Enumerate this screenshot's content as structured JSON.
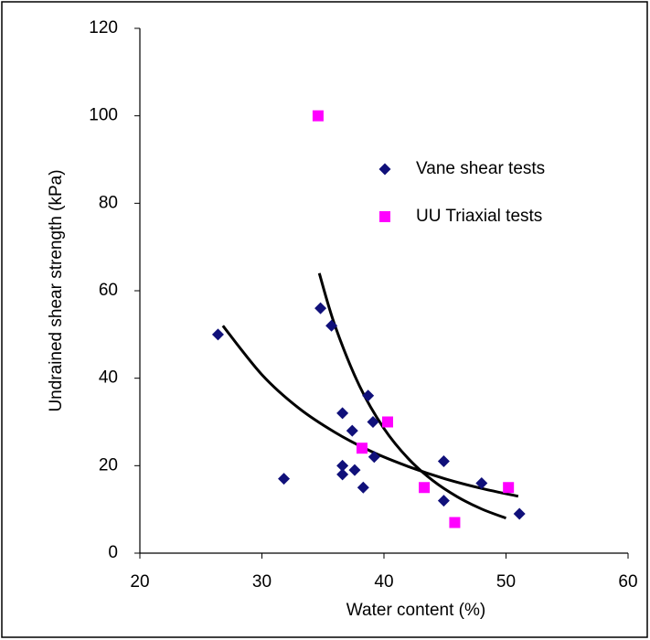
{
  "chart_data": {
    "type": "scatter",
    "x_label": "Water content (%)",
    "y_label": "Undrained shear strength (kPa)",
    "xlim": [
      20,
      60
    ],
    "xticks": [
      20,
      30,
      40,
      50,
      60
    ],
    "ylim": [
      0,
      120
    ],
    "yticks": [
      0,
      20,
      40,
      60,
      80,
      100,
      120
    ],
    "grid": false,
    "legend": "upper right",
    "series": [
      {
        "name": "Vane shear tests",
        "color": "#10107a",
        "marker": "diamond",
        "x": [
          26.4,
          31.8,
          34.8,
          35.7,
          36.6,
          37.4,
          36.6,
          36.6,
          37.6,
          38.3,
          38.7,
          39.1,
          39.2,
          44.9,
          44.9,
          48.0,
          51.1
        ],
        "values": [
          50,
          17,
          56,
          52,
          32,
          28,
          20,
          18,
          19,
          15,
          36,
          30,
          22,
          21,
          12,
          16,
          9
        ]
      },
      {
        "name": "UU Triaxial tests",
        "color": "#ff00ff",
        "marker": "square",
        "x": [
          34.6,
          40.3,
          38.2,
          43.3,
          45.8,
          50.2
        ],
        "values": [
          100,
          30,
          24,
          15,
          7,
          15
        ]
      }
    ],
    "trendlines": [
      {
        "color": "#000000",
        "x": [
          26.8,
          30,
          33,
          36,
          39,
          42,
          45,
          48,
          51
        ],
        "values": [
          52,
          40.8,
          33.2,
          27.6,
          23.2,
          19.8,
          17.0,
          14.8,
          13.0
        ]
      },
      {
        "color": "#000000",
        "x": [
          34.7,
          36,
          38,
          40,
          42,
          44,
          46,
          48,
          50
        ],
        "values": [
          64,
          51.9,
          38.2,
          28.5,
          21.6,
          16.6,
          12.9,
          10.1,
          8.0
        ]
      }
    ]
  }
}
